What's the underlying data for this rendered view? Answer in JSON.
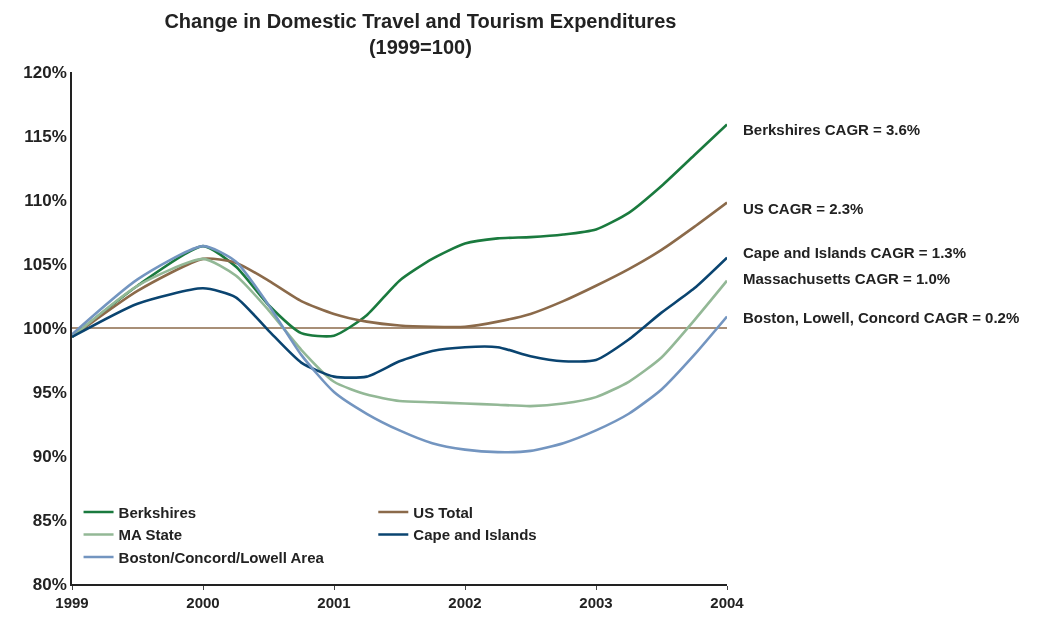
{
  "chart_data": {
    "type": "line",
    "title": "Change in Domestic Travel and Tourism Expenditures\n(1999=100)",
    "x": [
      1999,
      1999.5,
      2000,
      2000.25,
      2000.5,
      2000.75,
      2001,
      2001.25,
      2001.5,
      2001.75,
      2002,
      2002.25,
      2002.5,
      2002.75,
      2003,
      2003.25,
      2003.5,
      2003.75,
      2004
    ],
    "series": [
      {
        "name": "Berkshires",
        "color": "#1a7a3e",
        "values": [
          99.3,
          103.3,
          106.4,
          104.8,
          101.8,
          99.6,
          99.4,
          101.0,
          103.7,
          105.4,
          106.6,
          107.0,
          107.1,
          107.3,
          107.7,
          109.0,
          111.1,
          113.5,
          115.9
        ]
      },
      {
        "name": "US Total",
        "color": "#8b6a4a",
        "values": [
          99.3,
          102.9,
          105.4,
          105.1,
          103.7,
          102.1,
          101.1,
          100.5,
          100.2,
          100.1,
          100.1,
          100.5,
          101.1,
          102.1,
          103.3,
          104.6,
          106.1,
          107.9,
          109.8
        ]
      },
      {
        "name": "MA State",
        "color": "#93b896",
        "values": [
          99.3,
          103.3,
          105.4,
          104.1,
          101.4,
          98.3,
          95.8,
          94.8,
          94.3,
          94.2,
          94.1,
          94.0,
          93.9,
          94.1,
          94.6,
          95.8,
          97.7,
          100.6,
          103.7
        ]
      },
      {
        "name": "Cape and Islands",
        "color": "#0a4470",
        "values": [
          99.3,
          101.9,
          103.1,
          102.4,
          99.8,
          97.3,
          96.2,
          96.2,
          97.4,
          98.2,
          98.5,
          98.5,
          97.8,
          97.4,
          97.5,
          99.1,
          101.2,
          103.1,
          105.5
        ]
      },
      {
        "name": "Boston/Concord/Lowell Area",
        "color": "#7395c0",
        "values": [
          99.5,
          103.8,
          106.4,
          105.2,
          101.8,
          97.9,
          95.0,
          93.3,
          92.0,
          91.0,
          90.5,
          90.3,
          90.4,
          91.0,
          92.0,
          93.3,
          95.2,
          97.9,
          100.9
        ]
      }
    ],
    "xlim": [
      1999,
      2004
    ],
    "xticks": [
      1999,
      2000,
      2001,
      2002,
      2003,
      2004
    ],
    "ylim": [
      80,
      120
    ],
    "yticks": [
      {
        "value": 80,
        "label": "80%"
      },
      {
        "value": 85,
        "label": "85%"
      },
      {
        "value": 90,
        "label": "90%"
      },
      {
        "value": 95,
        "label": "95%"
      },
      {
        "value": 100,
        "label": "100%"
      },
      {
        "value": 105,
        "label": "105%"
      },
      {
        "value": 110,
        "label": "110%"
      },
      {
        "value": 115,
        "label": "115%"
      },
      {
        "value": 120,
        "label": "120%"
      }
    ],
    "ref_lines": [
      {
        "axis": "y",
        "value": 100,
        "color": "#8b6a4a"
      }
    ],
    "annotations": [
      "Berkshires CAGR = 3.6%",
      "US CAGR = 2.3%",
      "Cape and Islands CAGR = 1.3%",
      "Massachusetts CAGR = 1.0%",
      "Boston, Lowell, Concord CAGR = 0.2%"
    ],
    "legend": "bottom left",
    "grid": false,
    "marker": "none",
    "line_style": "solid"
  }
}
